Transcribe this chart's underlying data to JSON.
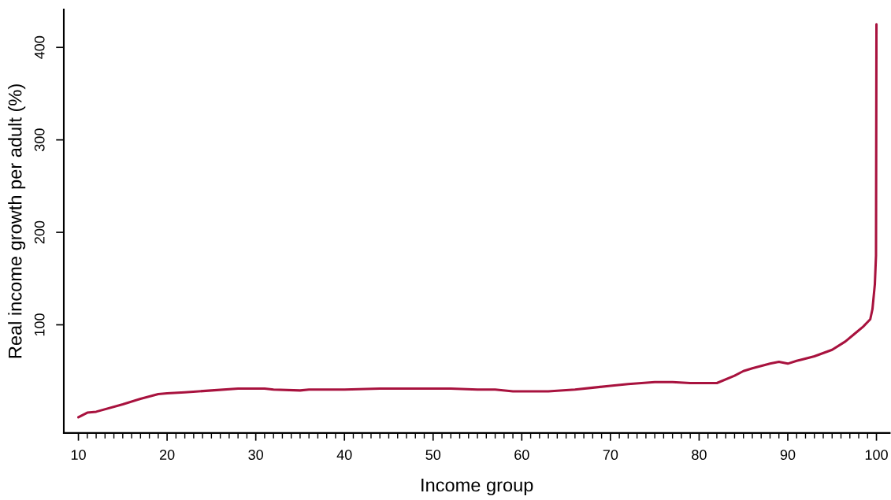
{
  "chart_data": {
    "type": "line",
    "xlabel": "Income group",
    "ylabel": "Real income growth per adult (%)",
    "series": [
      {
        "color": "#a8123e",
        "x": [
          10,
          11,
          12,
          15,
          17,
          19,
          20,
          22,
          25,
          28,
          31,
          32,
          35,
          36,
          40,
          44,
          50,
          52,
          55,
          57,
          59,
          63,
          66,
          68,
          70,
          72,
          75,
          77,
          79,
          82,
          84,
          85,
          86,
          88,
          89,
          90,
          91,
          93,
          95,
          96.5,
          97.5,
          98.5,
          99,
          99.3,
          99.55,
          99.82,
          99.95,
          100
        ],
        "values": [
          0,
          5,
          6,
          14,
          20,
          25,
          26,
          27,
          29,
          31,
          31,
          30,
          29,
          30,
          30,
          31,
          31,
          31,
          30,
          30,
          28,
          28,
          30,
          32,
          34,
          36,
          38,
          38,
          37,
          37,
          45,
          50,
          53,
          58,
          60,
          58,
          61,
          66,
          73,
          82,
          90,
          98,
          103,
          106,
          117,
          144,
          175,
          425
        ]
      }
    ],
    "xlim": [
      8.35,
      101.5
    ],
    "ylim": [
      -17,
      441
    ],
    "xticks": [
      10,
      {
        "value": 11,
        "label": null
      },
      {
        "value": 12,
        "label": null
      },
      {
        "value": 13,
        "label": null
      },
      {
        "value": 14,
        "label": null
      },
      {
        "value": 15,
        "label": null
      },
      {
        "value": 16,
        "label": null
      },
      {
        "value": 17,
        "label": null
      },
      {
        "value": 18,
        "label": null
      },
      {
        "value": 19,
        "label": null
      },
      20,
      {
        "value": 21,
        "label": null
      },
      {
        "value": 22,
        "label": null
      },
      {
        "value": 23,
        "label": null
      },
      {
        "value": 24,
        "label": null
      },
      {
        "value": 25,
        "label": null
      },
      {
        "value": 26,
        "label": null
      },
      {
        "value": 27,
        "label": null
      },
      {
        "value": 28,
        "label": null
      },
      {
        "value": 29,
        "label": null
      },
      30,
      {
        "value": 31,
        "label": null
      },
      {
        "value": 32,
        "label": null
      },
      {
        "value": 33,
        "label": null
      },
      {
        "value": 34,
        "label": null
      },
      {
        "value": 35,
        "label": null
      },
      {
        "value": 36,
        "label": null
      },
      {
        "value": 37,
        "label": null
      },
      {
        "value": 38,
        "label": null
      },
      {
        "value": 39,
        "label": null
      },
      40,
      {
        "value": 41,
        "label": null
      },
      {
        "value": 42,
        "label": null
      },
      {
        "value": 43,
        "label": null
      },
      {
        "value": 44,
        "label": null
      },
      {
        "value": 45,
        "label": null
      },
      {
        "value": 46,
        "label": null
      },
      {
        "value": 47,
        "label": null
      },
      {
        "value": 48,
        "label": null
      },
      {
        "value": 49,
        "label": null
      },
      50,
      {
        "value": 51,
        "label": null
      },
      {
        "value": 52,
        "label": null
      },
      {
        "value": 53,
        "label": null
      },
      {
        "value": 54,
        "label": null
      },
      {
        "value": 55,
        "label": null
      },
      {
        "value": 56,
        "label": null
      },
      {
        "value": 57,
        "label": null
      },
      {
        "value": 58,
        "label": null
      },
      {
        "value": 59,
        "label": null
      },
      60,
      {
        "value": 61,
        "label": null
      },
      {
        "value": 62,
        "label": null
      },
      {
        "value": 63,
        "label": null
      },
      {
        "value": 64,
        "label": null
      },
      {
        "value": 65,
        "label": null
      },
      {
        "value": 66,
        "label": null
      },
      {
        "value": 67,
        "label": null
      },
      {
        "value": 68,
        "label": null
      },
      {
        "value": 69,
        "label": null
      },
      70,
      {
        "value": 71,
        "label": null
      },
      {
        "value": 72,
        "label": null
      },
      {
        "value": 73,
        "label": null
      },
      {
        "value": 74,
        "label": null
      },
      {
        "value": 75,
        "label": null
      },
      {
        "value": 76,
        "label": null
      },
      {
        "value": 77,
        "label": null
      },
      {
        "value": 78,
        "label": null
      },
      {
        "value": 79,
        "label": null
      },
      80,
      {
        "value": 81,
        "label": null
      },
      {
        "value": 82,
        "label": null
      },
      {
        "value": 83,
        "label": null
      },
      {
        "value": 84,
        "label": null
      },
      {
        "value": 85,
        "label": null
      },
      {
        "value": 86,
        "label": null
      },
      {
        "value": 87,
        "label": null
      },
      {
        "value": 88,
        "label": null
      },
      {
        "value": 89,
        "label": null
      },
      90,
      {
        "value": 91,
        "label": null
      },
      {
        "value": 92,
        "label": null
      },
      {
        "value": 93,
        "label": null
      },
      {
        "value": 94,
        "label": null
      },
      {
        "value": 95,
        "label": null
      },
      {
        "value": 96,
        "label": null
      },
      {
        "value": 97,
        "label": null
      },
      {
        "value": 98,
        "label": null
      },
      {
        "value": 99,
        "label": null
      },
      100
    ],
    "yticks": [
      100,
      200,
      300,
      400
    ],
    "grid": false
  }
}
